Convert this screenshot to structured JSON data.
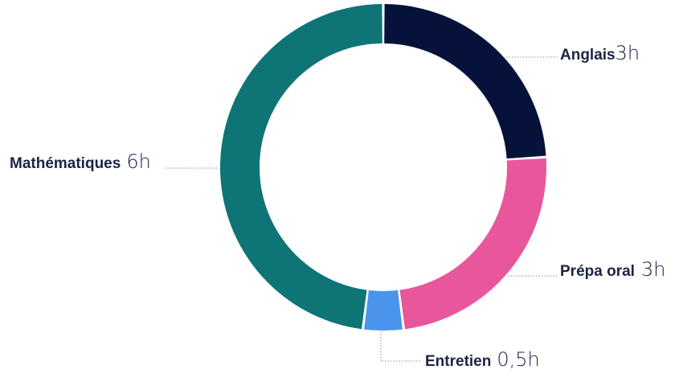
{
  "chart_data": {
    "type": "pie",
    "variant": "donut",
    "title": "",
    "categories": [
      "Anglais",
      "Prépa oral",
      "Entretien",
      "Mathématiques"
    ],
    "values": [
      3,
      3,
      0.5,
      6
    ],
    "value_labels": [
      "3h",
      "3h",
      "0,5h",
      "6h"
    ],
    "colors": [
      "#06123a",
      "#e8579b",
      "#4b94ee",
      "#0e7476"
    ],
    "legend": "none"
  }
}
